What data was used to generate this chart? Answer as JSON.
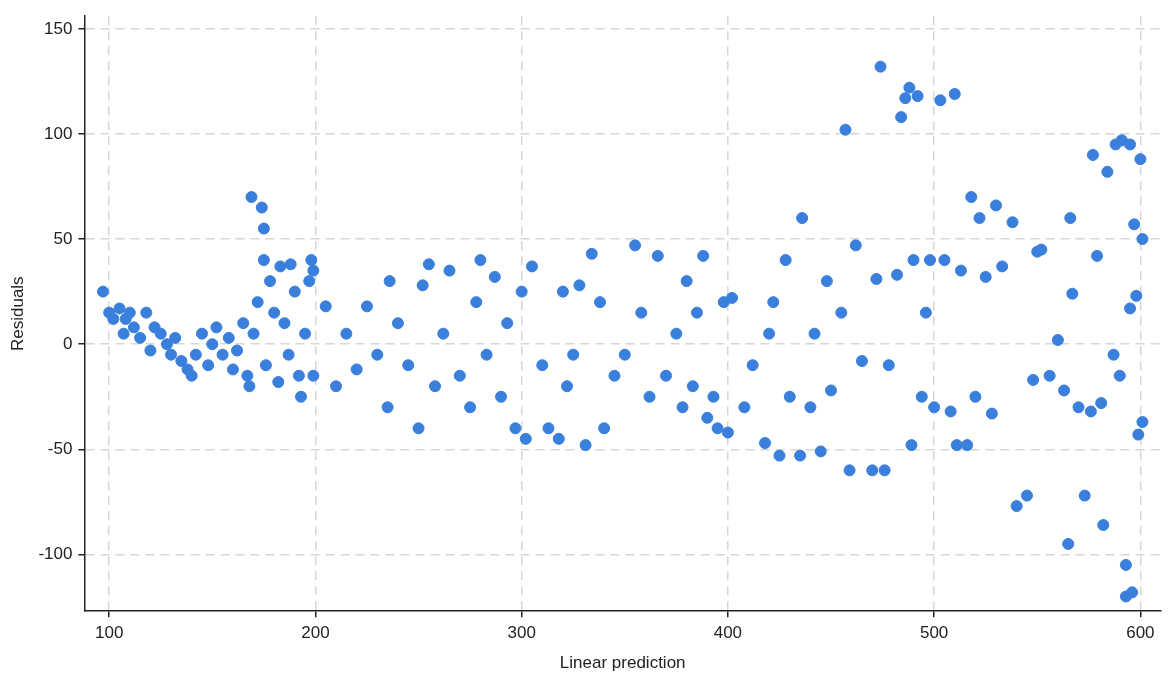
{
  "chart_data": {
    "type": "scatter",
    "xlabel": "Linear prediction",
    "ylabel": "Residuals",
    "color": "#3a7fdc",
    "marker": "circle",
    "grid": true,
    "xlim": [
      88,
      610
    ],
    "ylim": [
      -127,
      156
    ],
    "xticks": [
      100,
      200,
      300,
      400,
      500,
      600
    ],
    "yticks": [
      -100,
      -50,
      0,
      50,
      100,
      150
    ],
    "x": [
      97,
      100,
      102,
      105,
      107,
      108,
      110,
      112,
      115,
      118,
      120,
      122,
      125,
      128,
      130,
      132,
      135,
      138,
      140,
      142,
      145,
      148,
      150,
      152,
      155,
      158,
      160,
      162,
      165,
      167,
      168,
      169,
      170,
      172,
      174,
      175,
      175,
      176,
      178,
      180,
      182,
      183,
      185,
      187,
      188,
      190,
      192,
      193,
      195,
      197,
      198,
      199,
      199,
      205,
      210,
      215,
      220,
      225,
      230,
      235,
      236,
      240,
      245,
      250,
      252,
      255,
      258,
      262,
      265,
      270,
      275,
      278,
      280,
      283,
      287,
      290,
      293,
      297,
      300,
      302,
      305,
      310,
      313,
      318,
      320,
      322,
      325,
      328,
      331,
      334,
      338,
      340,
      345,
      350,
      355,
      358,
      362,
      366,
      370,
      375,
      378,
      380,
      383,
      385,
      388,
      390,
      393,
      395,
      398,
      400,
      402,
      408,
      412,
      418,
      420,
      422,
      425,
      428,
      430,
      435,
      436,
      440,
      442,
      445,
      448,
      450,
      455,
      457,
      459,
      462,
      465,
      470,
      472,
      474,
      476,
      478,
      482,
      484,
      486,
      488,
      489,
      490,
      492,
      494,
      496,
      498,
      500,
      503,
      505,
      508,
      510,
      511,
      513,
      516,
      518,
      520,
      522,
      525,
      528,
      530,
      533,
      538,
      540,
      545,
      548,
      550,
      552,
      556,
      560,
      563,
      565,
      566,
      567,
      570,
      573,
      576,
      577,
      579,
      581,
      582,
      584,
      587,
      588,
      590,
      591,
      593,
      593,
      595,
      595,
      596,
      597,
      598,
      599,
      600,
      601,
      601
    ],
    "values": [
      25,
      15,
      12,
      17,
      5,
      12,
      15,
      8,
      3,
      15,
      -3,
      8,
      5,
      0,
      -5,
      3,
      -8,
      -12,
      -15,
      -5,
      5,
      -10,
      0,
      8,
      -5,
      3,
      -12,
      -3,
      10,
      -15,
      -20,
      70,
      5,
      20,
      65,
      55,
      40,
      -10,
      30,
      15,
      -18,
      37,
      10,
      -5,
      38,
      25,
      -15,
      -25,
      5,
      30,
      40,
      35,
      -15,
      18,
      -20,
      5,
      -12,
      18,
      -5,
      -30,
      30,
      10,
      -10,
      -40,
      28,
      38,
      -20,
      5,
      35,
      -15,
      -30,
      20,
      40,
      -5,
      32,
      -25,
      10,
      -40,
      25,
      -45,
      37,
      -10,
      -40,
      -45,
      25,
      -20,
      -5,
      28,
      -48,
      43,
      20,
      -40,
      -15,
      -5,
      47,
      15,
      -25,
      42,
      -15,
      5,
      -30,
      30,
      -20,
      15,
      42,
      -35,
      -25,
      -40,
      20,
      -42,
      22,
      -30,
      -10,
      -47,
      5,
      20,
      -53,
      40,
      -25,
      -53,
      60,
      -30,
      5,
      -51,
      30,
      -22,
      15,
      102,
      -60,
      47,
      -8,
      -60,
      31,
      132,
      -60,
      -10,
      33,
      108,
      117,
      122,
      -48,
      40,
      118,
      -25,
      15,
      40,
      -30,
      116,
      40,
      -32,
      119,
      -48,
      35,
      -48,
      70,
      -25,
      60,
      32,
      -33,
      66,
      37,
      58,
      -77,
      -72,
      -17,
      44,
      45,
      -15,
      2,
      -22,
      -95,
      60,
      24,
      -30,
      -72,
      -32,
      90,
      42,
      -28,
      -86,
      82,
      -5,
      95,
      -15,
      97,
      -105,
      -120,
      95,
      17,
      -118,
      57,
      23,
      -43,
      88,
      -37,
      50
    ]
  }
}
